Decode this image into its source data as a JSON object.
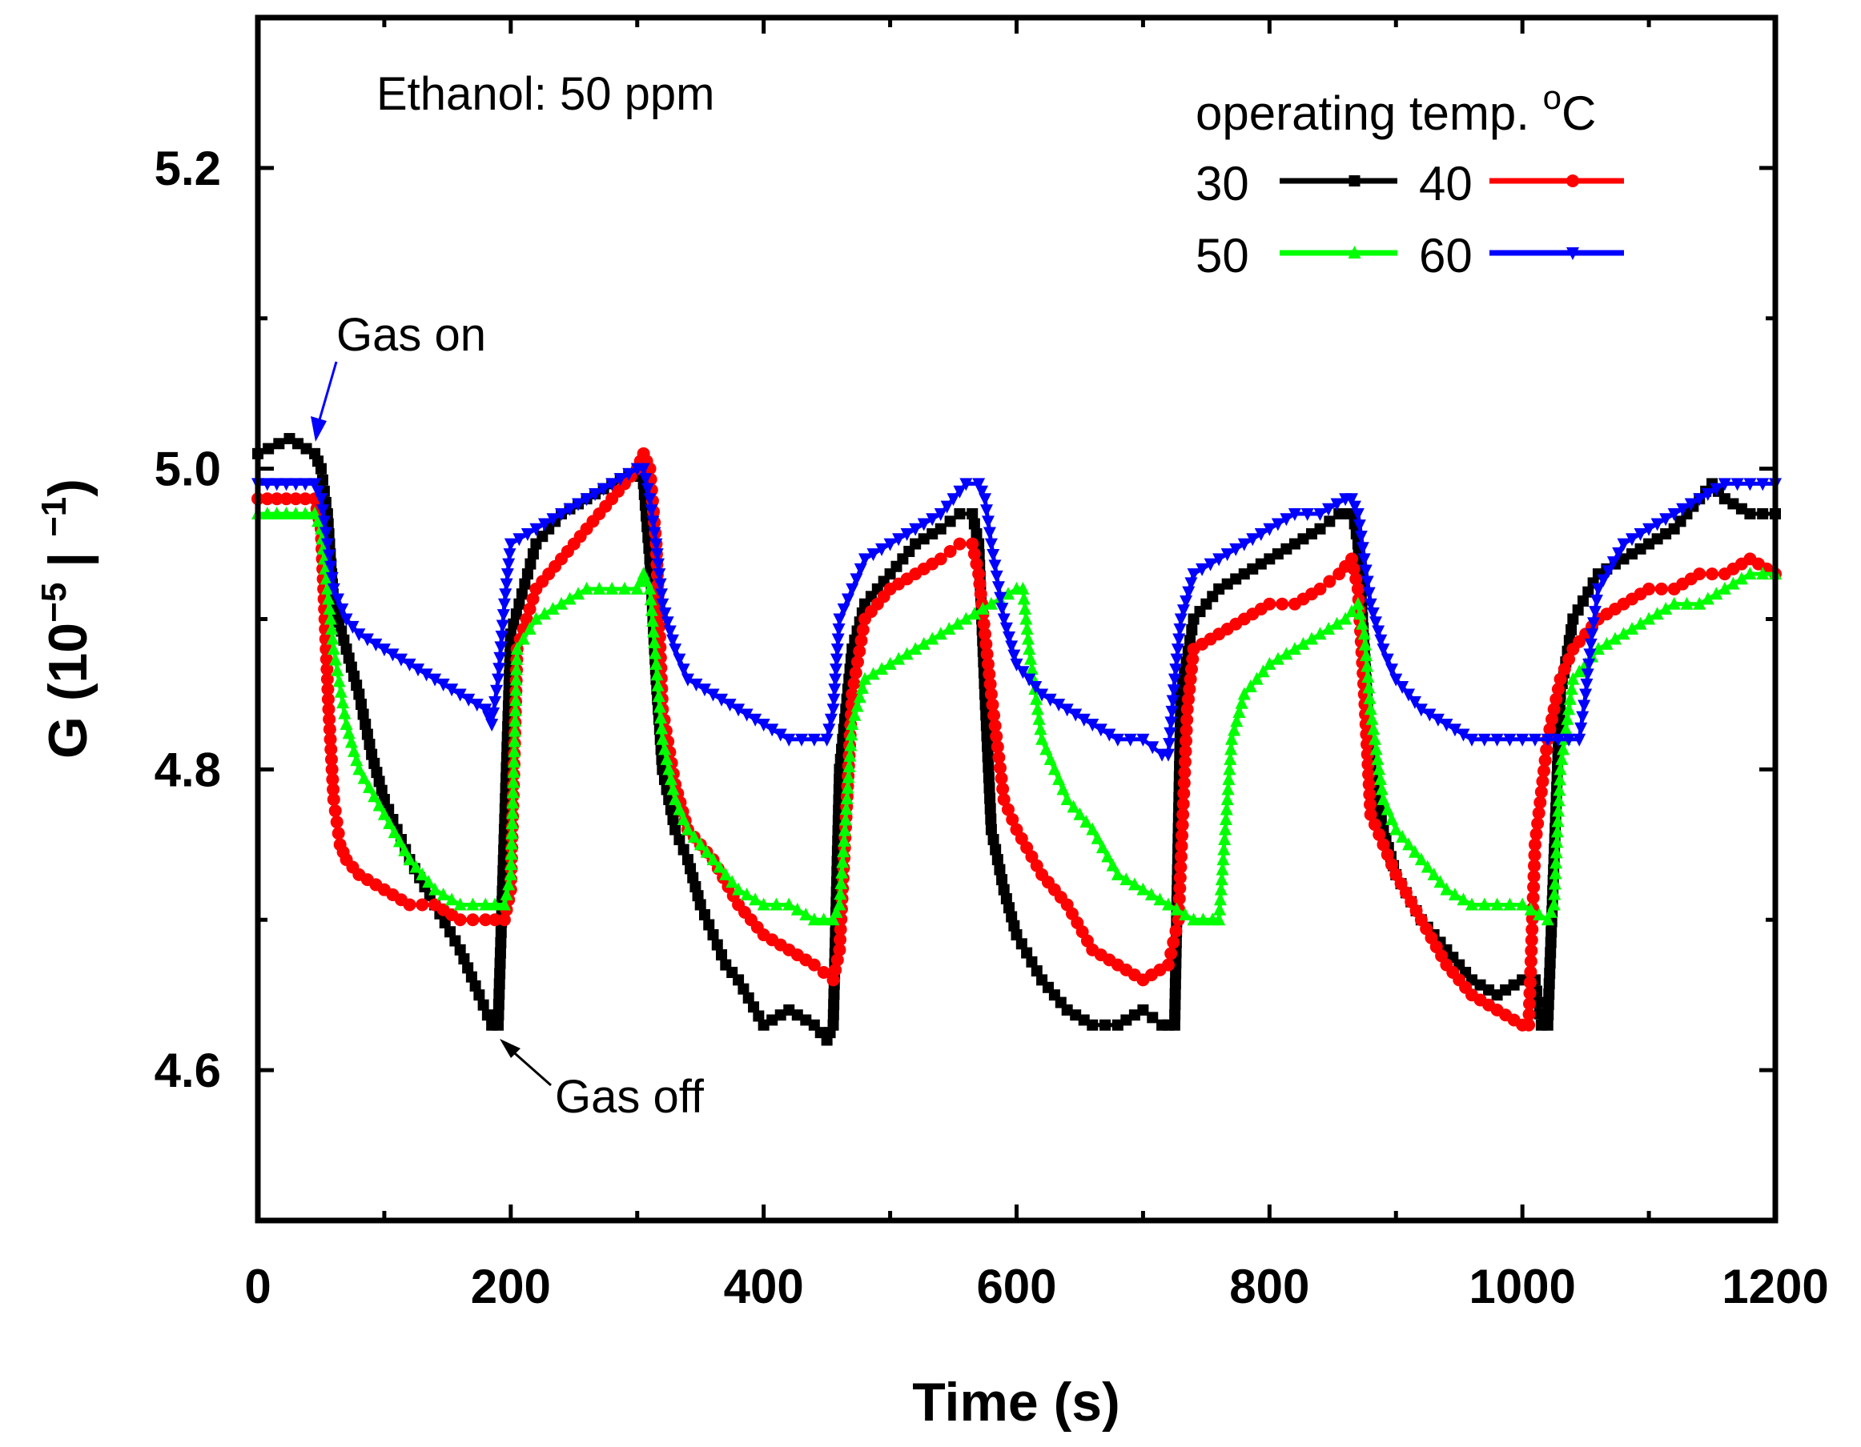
{
  "chart_data": {
    "type": "line",
    "title": "",
    "xlabel": "Time (s)",
    "ylabel": {
      "base": "G (10",
      "exp": "−5",
      "mid": " | ",
      "exp2": "−1",
      "end": ")"
    },
    "xlim": [
      0,
      1200
    ],
    "ylim": [
      4.5,
      5.3
    ],
    "xticks": [
      0,
      200,
      400,
      600,
      800,
      1000,
      1200
    ],
    "xtick_labels": [
      "0",
      "200",
      "400",
      "600",
      "800",
      "1000",
      "1200"
    ],
    "yticks": [
      4.6,
      4.8,
      5.0,
      5.2
    ],
    "ytick_labels": [
      "4.6",
      "4.8",
      "5.0",
      "5.2"
    ],
    "legend": {
      "title": "operating temp. ",
      "title_unit_sup": "o",
      "title_unit": "C",
      "placement": "top-right"
    },
    "annotations": [
      {
        "text": "Ethanol: 50 ppm",
        "x": 100,
        "y": 5.26
      },
      {
        "text": "Gas on",
        "x": 68,
        "y": 5.08,
        "arrow_to": [
          48,
          5.02
        ],
        "color": "#0000ff"
      },
      {
        "text": "Gas off",
        "x": 238,
        "y": 4.585,
        "arrow_to": [
          196,
          4.625
        ],
        "color": "#000000"
      }
    ],
    "series": [
      {
        "name": "30",
        "color": "#000000",
        "marker": "square",
        "x": [
          0,
          25,
          45,
          50,
          55,
          60,
          70,
          80,
          90,
          100,
          120,
          140,
          160,
          175,
          185,
          190,
          200,
          220,
          240,
          260,
          280,
          300,
          305,
          310,
          315,
          320,
          330,
          340,
          350,
          360,
          370,
          380,
          400,
          420,
          440,
          450,
          455,
          460,
          470,
          480,
          500,
          520,
          540,
          555,
          565,
          570,
          575,
          580,
          590,
          600,
          620,
          640,
          660,
          680,
          700,
          715,
          720,
          725,
          730,
          740,
          760,
          780,
          800,
          820,
          840,
          855,
          862,
          866,
          870,
          875,
          880,
          890,
          900,
          920,
          940,
          960,
          980,
          1000,
          1010,
          1015,
          1020,
          1030,
          1040,
          1060,
          1080,
          1100,
          1120,
          1140,
          1150,
          1160,
          1180,
          1200
        ],
        "y": [
          5.01,
          5.02,
          5.01,
          5.0,
          4.97,
          4.91,
          4.88,
          4.85,
          4.81,
          4.78,
          4.74,
          4.71,
          4.68,
          4.65,
          4.63,
          4.63,
          4.89,
          4.95,
          4.97,
          4.98,
          4.99,
          5.0,
          4.99,
          4.94,
          4.86,
          4.8,
          4.76,
          4.74,
          4.71,
          4.69,
          4.67,
          4.66,
          4.63,
          4.64,
          4.63,
          4.62,
          4.63,
          4.8,
          4.88,
          4.91,
          4.93,
          4.95,
          4.96,
          4.97,
          4.97,
          4.95,
          4.85,
          4.76,
          4.72,
          4.69,
          4.66,
          4.64,
          4.63,
          4.63,
          4.64,
          4.63,
          4.63,
          4.63,
          4.85,
          4.9,
          4.92,
          4.93,
          4.94,
          4.95,
          4.96,
          4.97,
          4.97,
          4.97,
          4.95,
          4.88,
          4.8,
          4.76,
          4.73,
          4.7,
          4.68,
          4.66,
          4.65,
          4.66,
          4.66,
          4.63,
          4.63,
          4.85,
          4.9,
          4.93,
          4.94,
          4.95,
          4.96,
          4.98,
          4.99,
          4.98,
          4.97,
          4.97
        ]
      },
      {
        "name": "40",
        "color": "#ff0000",
        "marker": "circle",
        "x": [
          0,
          30,
          45,
          50,
          53,
          56,
          60,
          65,
          70,
          80,
          100,
          120,
          140,
          160,
          180,
          195,
          200,
          205,
          220,
          240,
          260,
          280,
          300,
          305,
          310,
          315,
          320,
          330,
          340,
          360,
          380,
          400,
          420,
          440,
          455,
          460,
          470,
          480,
          500,
          520,
          540,
          555,
          565,
          570,
          580,
          590,
          600,
          620,
          640,
          660,
          680,
          700,
          720,
          728,
          735,
          740,
          760,
          780,
          800,
          820,
          840,
          855,
          865,
          870,
          875,
          880,
          890,
          900,
          920,
          940,
          960,
          980,
          1000,
          1005,
          1010,
          1020,
          1030,
          1040,
          1060,
          1080,
          1100,
          1120,
          1140,
          1160,
          1180,
          1200
        ],
        "y": [
          4.98,
          4.98,
          4.98,
          4.96,
          4.9,
          4.84,
          4.78,
          4.75,
          4.74,
          4.73,
          4.72,
          4.71,
          4.71,
          4.7,
          4.7,
          4.7,
          4.72,
          4.88,
          4.92,
          4.94,
          4.96,
          4.98,
          5.0,
          5.01,
          5.0,
          4.95,
          4.84,
          4.79,
          4.76,
          4.74,
          4.71,
          4.69,
          4.68,
          4.67,
          4.66,
          4.68,
          4.85,
          4.9,
          4.92,
          4.93,
          4.94,
          4.95,
          4.95,
          4.93,
          4.85,
          4.78,
          4.76,
          4.73,
          4.71,
          4.68,
          4.67,
          4.66,
          4.67,
          4.7,
          4.84,
          4.88,
          4.89,
          4.9,
          4.91,
          4.91,
          4.92,
          4.93,
          4.94,
          4.92,
          4.85,
          4.77,
          4.75,
          4.73,
          4.7,
          4.67,
          4.65,
          4.64,
          4.63,
          4.63,
          4.75,
          4.82,
          4.86,
          4.88,
          4.9,
          4.91,
          4.92,
          4.92,
          4.93,
          4.93,
          4.94,
          4.93
        ]
      },
      {
        "name": "50",
        "color": "#00ff00",
        "marker": "triangle-up",
        "x": [
          0,
          30,
          45,
          50,
          55,
          60,
          70,
          80,
          100,
          120,
          140,
          160,
          180,
          195,
          200,
          205,
          220,
          240,
          260,
          280,
          300,
          305,
          310,
          315,
          320,
          330,
          340,
          360,
          380,
          400,
          420,
          440,
          455,
          460,
          470,
          480,
          500,
          520,
          540,
          560,
          580,
          600,
          605,
          610,
          620,
          640,
          660,
          680,
          700,
          720,
          740,
          755,
          760,
          765,
          770,
          780,
          800,
          820,
          840,
          860,
          870,
          875,
          880,
          890,
          900,
          920,
          940,
          960,
          980,
          1000,
          1020,
          1025,
          1030,
          1040,
          1060,
          1080,
          1100,
          1120,
          1140,
          1160,
          1180,
          1200
        ],
        "y": [
          4.97,
          4.97,
          4.97,
          4.96,
          4.92,
          4.88,
          4.83,
          4.8,
          4.77,
          4.74,
          4.72,
          4.71,
          4.71,
          4.71,
          4.73,
          4.88,
          4.9,
          4.91,
          4.92,
          4.92,
          4.92,
          4.93,
          4.92,
          4.87,
          4.82,
          4.78,
          4.76,
          4.74,
          4.72,
          4.71,
          4.71,
          4.7,
          4.7,
          4.71,
          4.83,
          4.86,
          4.87,
          4.88,
          4.89,
          4.9,
          4.91,
          4.92,
          4.92,
          4.88,
          4.82,
          4.78,
          4.76,
          4.73,
          4.72,
          4.71,
          4.7,
          4.7,
          4.7,
          4.76,
          4.82,
          4.85,
          4.87,
          4.88,
          4.89,
          4.9,
          4.91,
          4.89,
          4.84,
          4.78,
          4.76,
          4.74,
          4.72,
          4.71,
          4.71,
          4.71,
          4.7,
          4.71,
          4.8,
          4.86,
          4.88,
          4.89,
          4.9,
          4.91,
          4.91,
          4.92,
          4.93,
          4.93
        ]
      },
      {
        "name": "60",
        "color": "#0000ff",
        "marker": "triangle-down",
        "x": [
          0,
          30,
          45,
          50,
          55,
          60,
          70,
          80,
          100,
          120,
          140,
          160,
          180,
          185,
          190,
          195,
          200,
          220,
          240,
          260,
          280,
          300,
          305,
          310,
          315,
          320,
          330,
          340,
          360,
          380,
          400,
          420,
          440,
          450,
          455,
          460,
          470,
          480,
          500,
          520,
          540,
          560,
          570,
          575,
          580,
          590,
          600,
          620,
          640,
          660,
          680,
          700,
          715,
          720,
          725,
          730,
          740,
          760,
          780,
          800,
          820,
          840,
          860,
          865,
          870,
          875,
          880,
          890,
          900,
          920,
          940,
          960,
          980,
          1000,
          1020,
          1045,
          1050,
          1055,
          1060,
          1080,
          1100,
          1120,
          1140,
          1160,
          1180,
          1200
        ],
        "y": [
          4.99,
          4.99,
          4.99,
          4.98,
          4.95,
          4.92,
          4.9,
          4.89,
          4.88,
          4.87,
          4.86,
          4.85,
          4.84,
          4.83,
          4.86,
          4.91,
          4.95,
          4.96,
          4.97,
          4.98,
          4.99,
          5.0,
          5.0,
          4.98,
          4.95,
          4.91,
          4.88,
          4.86,
          4.85,
          4.84,
          4.83,
          4.82,
          4.82,
          4.82,
          4.84,
          4.9,
          4.92,
          4.94,
          4.95,
          4.96,
          4.97,
          4.99,
          4.99,
          4.98,
          4.95,
          4.9,
          4.87,
          4.85,
          4.84,
          4.83,
          4.82,
          4.82,
          4.81,
          4.81,
          4.86,
          4.9,
          4.93,
          4.94,
          4.95,
          4.96,
          4.97,
          4.97,
          4.98,
          4.98,
          4.97,
          4.94,
          4.91,
          4.88,
          4.86,
          4.84,
          4.83,
          4.82,
          4.82,
          4.82,
          4.82,
          4.82,
          4.85,
          4.89,
          4.92,
          4.95,
          4.96,
          4.97,
          4.98,
          4.99,
          4.99,
          4.99
        ]
      }
    ]
  }
}
